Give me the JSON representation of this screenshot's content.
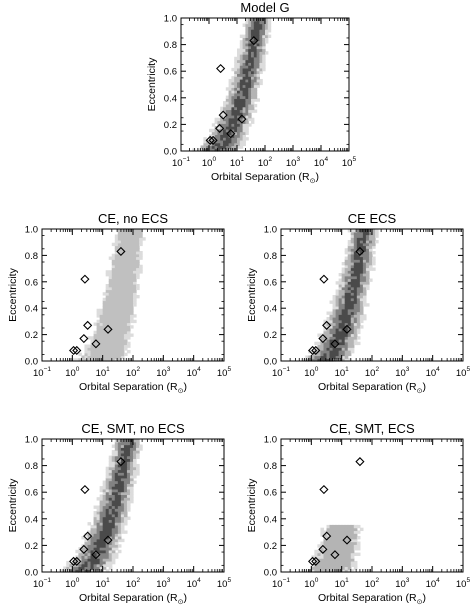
{
  "chart_data": [
    {
      "type": "scatter",
      "title": "Model G",
      "xlabel": "Orbital Separation",
      "xlabel_unit": "R",
      "xlabel_unit_sub": "⊙",
      "ylabel": "Eccentricity",
      "xscale": "log",
      "xlim": [
        0.1,
        100000
      ],
      "ylim": [
        0.0,
        1.0
      ],
      "x_ticks": [
        {
          "base": "10",
          "exp": "−1"
        },
        {
          "base": "10",
          "exp": "0"
        },
        {
          "base": "10",
          "exp": "1"
        },
        {
          "base": "10",
          "exp": "2"
        },
        {
          "base": "10",
          "exp": "3"
        },
        {
          "base": "10",
          "exp": "4"
        },
        {
          "base": "10",
          "exp": "5"
        }
      ],
      "y_ticks": [
        "0.0",
        "0.2",
        "0.4",
        "0.6",
        "0.8",
        "1.0"
      ],
      "density": {
        "a_min": 1.2,
        "a_max": 60,
        "levels": [
          "#dcdcdc",
          "#b4b4b4",
          "#828282",
          "#4a4a4a"
        ]
      },
      "observed_points": [
        {
          "x": 1.1,
          "y": 0.08
        },
        {
          "x": 1.4,
          "y": 0.08
        },
        {
          "x": 2.4,
          "y": 0.17
        },
        {
          "x": 2.6,
          "y": 0.62
        },
        {
          "x": 3.2,
          "y": 0.27
        },
        {
          "x": 6.0,
          "y": 0.13
        },
        {
          "x": 15,
          "y": 0.24
        },
        {
          "x": 40,
          "y": 0.83
        }
      ]
    },
    {
      "type": "scatter",
      "title": "CE, no ECS",
      "xlabel": "Orbital Separation",
      "xlabel_unit": "R",
      "xlabel_unit_sub": "⊙",
      "ylabel": "Eccentricity",
      "xscale": "log",
      "xlim": [
        0.1,
        100000
      ],
      "ylim": [
        0.0,
        1.0
      ],
      "x_ticks": [
        {
          "base": "10",
          "exp": "−1"
        },
        {
          "base": "10",
          "exp": "0"
        },
        {
          "base": "10",
          "exp": "1"
        },
        {
          "base": "10",
          "exp": "2"
        },
        {
          "base": "10",
          "exp": "3"
        },
        {
          "base": "10",
          "exp": "4"
        },
        {
          "base": "10",
          "exp": "5"
        }
      ],
      "y_ticks": [
        "0.0",
        "0.2",
        "0.4",
        "0.6",
        "0.8",
        "1.0"
      ],
      "density": {
        "a_min": 6,
        "a_max": 80,
        "levels": [
          "#dcdcdc",
          "#c0c0c0"
        ]
      },
      "observed_points": [
        {
          "x": 1.1,
          "y": 0.08
        },
        {
          "x": 1.4,
          "y": 0.08
        },
        {
          "x": 2.4,
          "y": 0.17
        },
        {
          "x": 2.6,
          "y": 0.62
        },
        {
          "x": 3.2,
          "y": 0.27
        },
        {
          "x": 6.0,
          "y": 0.13
        },
        {
          "x": 15,
          "y": 0.24
        },
        {
          "x": 40,
          "y": 0.83
        }
      ]
    },
    {
      "type": "scatter",
      "title": "CE ECS",
      "xlabel": "Orbital Separation",
      "xlabel_unit": "R",
      "xlabel_unit_sub": "⊙",
      "ylabel": "Eccentricity",
      "xscale": "log",
      "xlim": [
        0.1,
        100000
      ],
      "ylim": [
        0.0,
        1.0
      ],
      "x_ticks": [
        {
          "base": "10",
          "exp": "−1"
        },
        {
          "base": "10",
          "exp": "0"
        },
        {
          "base": "10",
          "exp": "1"
        },
        {
          "base": "10",
          "exp": "2"
        },
        {
          "base": "10",
          "exp": "3"
        },
        {
          "base": "10",
          "exp": "4"
        },
        {
          "base": "10",
          "exp": "5"
        }
      ],
      "y_ticks": [
        "0.0",
        "0.2",
        "0.4",
        "0.6",
        "0.8",
        "1.0"
      ],
      "density": {
        "a_min": 2,
        "a_max": 55,
        "levels": [
          "#dcdcdc",
          "#b4b4b4",
          "#828282",
          "#4a4a4a"
        ]
      },
      "observed_points": [
        {
          "x": 1.1,
          "y": 0.08
        },
        {
          "x": 1.4,
          "y": 0.08
        },
        {
          "x": 2.4,
          "y": 0.17
        },
        {
          "x": 2.6,
          "y": 0.62
        },
        {
          "x": 3.2,
          "y": 0.27
        },
        {
          "x": 6.0,
          "y": 0.13
        },
        {
          "x": 15,
          "y": 0.24
        },
        {
          "x": 40,
          "y": 0.83
        }
      ]
    },
    {
      "type": "scatter",
      "title": "CE, SMT, no ECS",
      "xlabel": "Orbital Separation",
      "xlabel_unit": "R",
      "xlabel_unit_sub": "⊙",
      "ylabel": "Eccentricity",
      "xscale": "log",
      "xlim": [
        0.1,
        100000
      ],
      "ylim": [
        0.0,
        1.0
      ],
      "x_ticks": [
        {
          "base": "10",
          "exp": "−1"
        },
        {
          "base": "10",
          "exp": "0"
        },
        {
          "base": "10",
          "exp": "1"
        },
        {
          "base": "10",
          "exp": "2"
        },
        {
          "base": "10",
          "exp": "3"
        },
        {
          "base": "10",
          "exp": "4"
        },
        {
          "base": "10",
          "exp": "5"
        }
      ],
      "y_ticks": [
        "0.0",
        "0.2",
        "0.4",
        "0.6",
        "0.8",
        "1.0"
      ],
      "density": {
        "a_min": 1.5,
        "a_max": 70,
        "levels": [
          "#dcdcdc",
          "#b4b4b4",
          "#828282",
          "#4a4a4a"
        ]
      },
      "observed_points": [
        {
          "x": 1.1,
          "y": 0.08
        },
        {
          "x": 1.4,
          "y": 0.08
        },
        {
          "x": 2.4,
          "y": 0.17
        },
        {
          "x": 2.6,
          "y": 0.62
        },
        {
          "x": 3.2,
          "y": 0.27
        },
        {
          "x": 6.0,
          "y": 0.13
        },
        {
          "x": 15,
          "y": 0.24
        },
        {
          "x": 40,
          "y": 0.83
        }
      ]
    },
    {
      "type": "scatter",
      "title": "CE, SMT, ECS",
      "xlabel": "Orbital Separation",
      "xlabel_unit": "R",
      "xlabel_unit_sub": "⊙",
      "ylabel": "Eccentricity",
      "xscale": "log",
      "xlim": [
        0.1,
        100000
      ],
      "ylim": [
        0.0,
        1.0
      ],
      "x_ticks": [
        {
          "base": "10",
          "exp": "−1"
        },
        {
          "base": "10",
          "exp": "0"
        },
        {
          "base": "10",
          "exp": "1"
        },
        {
          "base": "10",
          "exp": "2"
        },
        {
          "base": "10",
          "exp": "3"
        },
        {
          "base": "10",
          "exp": "4"
        },
        {
          "base": "10",
          "exp": "5"
        }
      ],
      "y_ticks": [
        "0.0",
        "0.2",
        "0.4",
        "0.6",
        "0.8",
        "1.0"
      ],
      "density": {
        "a_min": 3,
        "a_max": 25,
        "e_max": 0.35,
        "levels": [
          "#dcdcdc",
          "#b4b4b4"
        ]
      },
      "observed_points": [
        {
          "x": 1.1,
          "y": 0.08
        },
        {
          "x": 1.4,
          "y": 0.08
        },
        {
          "x": 2.4,
          "y": 0.17
        },
        {
          "x": 2.6,
          "y": 0.62
        },
        {
          "x": 3.2,
          "y": 0.27
        },
        {
          "x": 6.0,
          "y": 0.13
        },
        {
          "x": 15,
          "y": 0.24
        },
        {
          "x": 40,
          "y": 0.83
        }
      ]
    }
  ]
}
